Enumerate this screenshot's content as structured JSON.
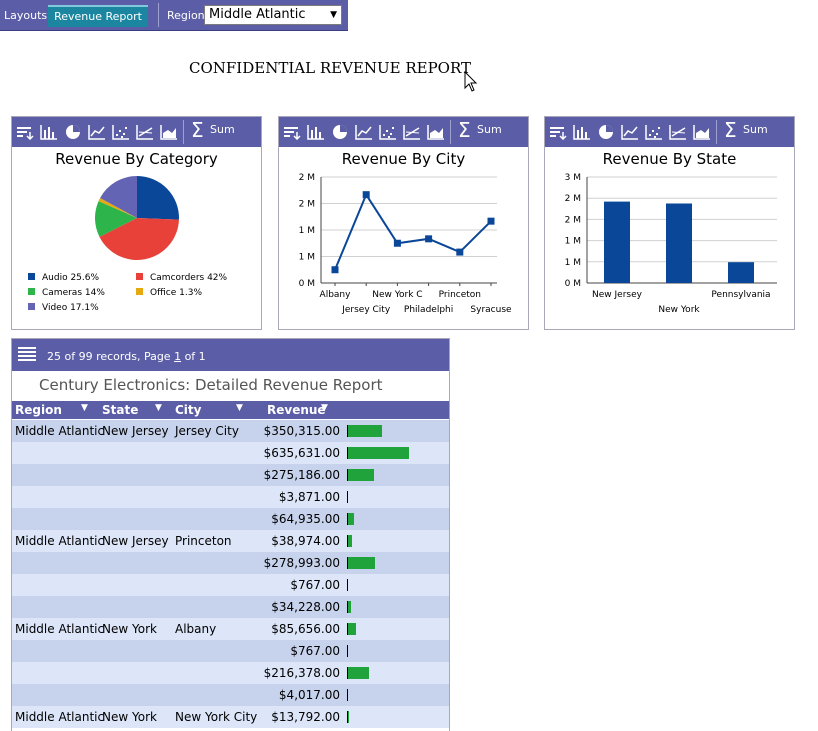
{
  "toolbar": {
    "layouts_label": "Layouts",
    "active_tab": "Revenue Report",
    "region_label": "Region",
    "region_value": "Middle Atlantic"
  },
  "report": {
    "title": "CONFIDENTIAL REVENUE REPORT"
  },
  "panel_tools": {
    "sum_label": "Sum"
  },
  "colors": {
    "toolbar": "#5b5ea6",
    "tab": "#1c86a0",
    "series": "#0a4799",
    "bar": "#21a33b",
    "row_a": "#c7d3ec",
    "row_b": "#dce6f8"
  },
  "chart_data": [
    {
      "type": "pie",
      "title": "Revenue By Category",
      "slices": [
        {
          "label": "Audio",
          "value": 25.6,
          "display": "Audio 25.6%",
          "color": "#0a4799"
        },
        {
          "label": "Camcorders",
          "value": 42,
          "display": "Camcorders 42%",
          "color": "#e8413a"
        },
        {
          "label": "Cameras",
          "value": 14,
          "display": "Cameras 14%",
          "color": "#2db44a"
        },
        {
          "label": "Office",
          "value": 1.3,
          "display": "Office 1.3%",
          "color": "#e6a90f"
        },
        {
          "label": "Video",
          "value": 17.1,
          "display": "Video 17.1%",
          "color": "#6464b4"
        }
      ]
    },
    {
      "type": "line",
      "title": "Revenue By City",
      "categories": [
        "Albany",
        "Jersey City",
        "New York C",
        "Philadelphi",
        "Princeton",
        "Syracuse"
      ],
      "x_labels": [
        "Albany",
        "Jersey City",
        "New York C",
        "Philadelphi",
        "Princeton",
        "Syracuse"
      ],
      "values": [
        0.3,
        2.0,
        0.9,
        1.0,
        0.7,
        1.4
      ],
      "yticks": [
        "0 M",
        "1 M",
        "1 M",
        "2 M",
        "2 M"
      ],
      "ylim": [
        0,
        2.4
      ]
    },
    {
      "type": "bar",
      "title": "Revenue By State",
      "categories": [
        "New Jersey",
        "New York",
        "Pennsylvania"
      ],
      "values": [
        2.15,
        2.1,
        0.55
      ],
      "yticks": [
        "0 M",
        "1 M",
        "1 M",
        "2 M",
        "2 M",
        "3 M"
      ],
      "ylim": [
        0,
        2.8
      ]
    }
  ],
  "grid": {
    "records_prefix": "25 of 99 records, Page ",
    "page": "1",
    "records_suffix": " of 1",
    "title": "Century Electronics: Detailed Revenue Report",
    "columns": [
      "Region",
      "State",
      "City",
      "Revenue"
    ],
    "max_revenue": 635631,
    "rows": [
      {
        "region": "Middle Atlantic",
        "state": "New Jersey",
        "city": "Jersey City",
        "revenue": "$350,315.00",
        "value": 350315
      },
      {
        "region": "",
        "state": "",
        "city": "",
        "revenue": "$635,631.00",
        "value": 635631
      },
      {
        "region": "",
        "state": "",
        "city": "",
        "revenue": "$275,186.00",
        "value": 275186
      },
      {
        "region": "",
        "state": "",
        "city": "",
        "revenue": "$3,871.00",
        "value": 3871
      },
      {
        "region": "",
        "state": "",
        "city": "",
        "revenue": "$64,935.00",
        "value": 64935
      },
      {
        "region": "Middle Atlantic",
        "state": "New Jersey",
        "city": "Princeton",
        "revenue": "$38,974.00",
        "value": 38974
      },
      {
        "region": "",
        "state": "",
        "city": "",
        "revenue": "$278,993.00",
        "value": 278993
      },
      {
        "region": "",
        "state": "",
        "city": "",
        "revenue": "$767.00",
        "value": 767
      },
      {
        "region": "",
        "state": "",
        "city": "",
        "revenue": "$34,228.00",
        "value": 34228
      },
      {
        "region": "Middle Atlantic",
        "state": "New York",
        "city": "Albany",
        "revenue": "$85,656.00",
        "value": 85656
      },
      {
        "region": "",
        "state": "",
        "city": "",
        "revenue": "$767.00",
        "value": 767
      },
      {
        "region": "",
        "state": "",
        "city": "",
        "revenue": "$216,378.00",
        "value": 216378
      },
      {
        "region": "",
        "state": "",
        "city": "",
        "revenue": "$4,017.00",
        "value": 4017
      },
      {
        "region": "Middle Atlantic",
        "state": "New York",
        "city": "New York City",
        "revenue": "$13,792.00",
        "value": 13792
      }
    ]
  }
}
